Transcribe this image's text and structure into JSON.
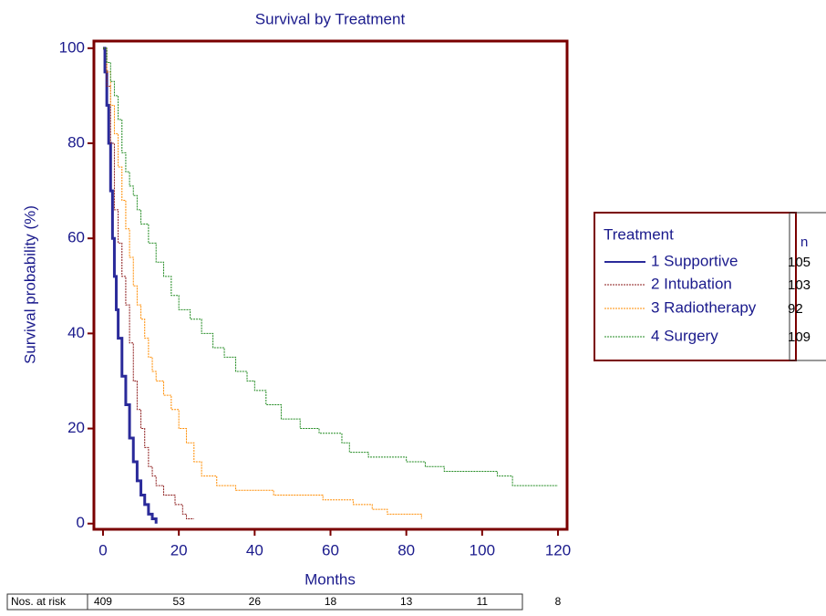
{
  "chart_data": {
    "type": "step",
    "title": "Survival by Treatment",
    "xlabel": "Months",
    "ylabel": "Survival probability (%)",
    "xlim": [
      -2.4,
      122.4
    ],
    "ylim": [
      -1.2,
      101.5
    ],
    "xticks": [
      0,
      20,
      40,
      60,
      80,
      100,
      120
    ],
    "yticks": [
      0,
      20,
      40,
      60,
      80,
      100
    ],
    "legend": {
      "title": "Treatment",
      "n_header": "n",
      "position": "right"
    },
    "series": [
      {
        "name": "1 Supportive",
        "color": "#2a2a9a",
        "line_style": "solid",
        "n": 105,
        "x": [
          0,
          0.5,
          1,
          1.5,
          2,
          2.5,
          3,
          3.5,
          4,
          5,
          6,
          7,
          8,
          9,
          10,
          11,
          12,
          13,
          14
        ],
        "values": [
          100,
          95,
          88,
          80,
          70,
          60,
          52,
          45,
          39,
          31,
          25,
          18,
          13,
          9,
          6,
          4,
          2,
          1,
          0
        ]
      },
      {
        "name": "2 Intubation",
        "color": "#8b1a1a",
        "line_style": "dashed",
        "n": 103,
        "x": [
          0,
          1,
          2,
          3,
          4,
          5,
          6,
          7,
          8,
          9,
          10,
          11,
          12,
          13,
          14,
          16,
          19,
          21,
          22,
          24
        ],
        "values": [
          100,
          92,
          80,
          66,
          59,
          52,
          46,
          38,
          30,
          24,
          20,
          16,
          12,
          10,
          8,
          6,
          4,
          2,
          1,
          1
        ]
      },
      {
        "name": "3 Radiotherapy",
        "color": "#ff8c00",
        "line_style": "dashed",
        "n": 92,
        "x": [
          0,
          1,
          2,
          3,
          4,
          5,
          6,
          7,
          8,
          9,
          10,
          11,
          12,
          13,
          14,
          16,
          18,
          20,
          22,
          24,
          26,
          30,
          35,
          45,
          58,
          66,
          71,
          75,
          84
        ],
        "values": [
          100,
          95,
          88,
          82,
          75,
          68,
          62,
          56,
          50,
          46,
          43,
          39,
          35,
          32,
          30,
          27,
          24,
          20,
          17,
          13,
          10,
          8,
          7,
          6,
          5,
          4,
          3,
          2,
          1
        ]
      },
      {
        "name": "4 Surgery",
        "color": "#228b22",
        "line_style": "dashed",
        "n": 109,
        "x": [
          0,
          1,
          2,
          3,
          4,
          5,
          6,
          7,
          8,
          9,
          10,
          12,
          14,
          16,
          18,
          20,
          23,
          26,
          29,
          32,
          35,
          38,
          40,
          43,
          47,
          52,
          57,
          63,
          65,
          70,
          80,
          85,
          90,
          104,
          108,
          120
        ],
        "values": [
          100,
          97,
          93,
          90,
          85,
          78,
          74,
          71,
          69,
          66,
          63,
          59,
          55,
          52,
          48,
          45,
          43,
          40,
          37,
          35,
          32,
          30,
          28,
          25,
          22,
          20,
          19,
          17,
          15,
          14,
          13,
          12,
          11,
          10,
          8,
          8
        ]
      }
    ],
    "at_risk": {
      "label": "Nos. at risk",
      "values": [
        409,
        53,
        26,
        18,
        13,
        11,
        8
      ]
    }
  }
}
